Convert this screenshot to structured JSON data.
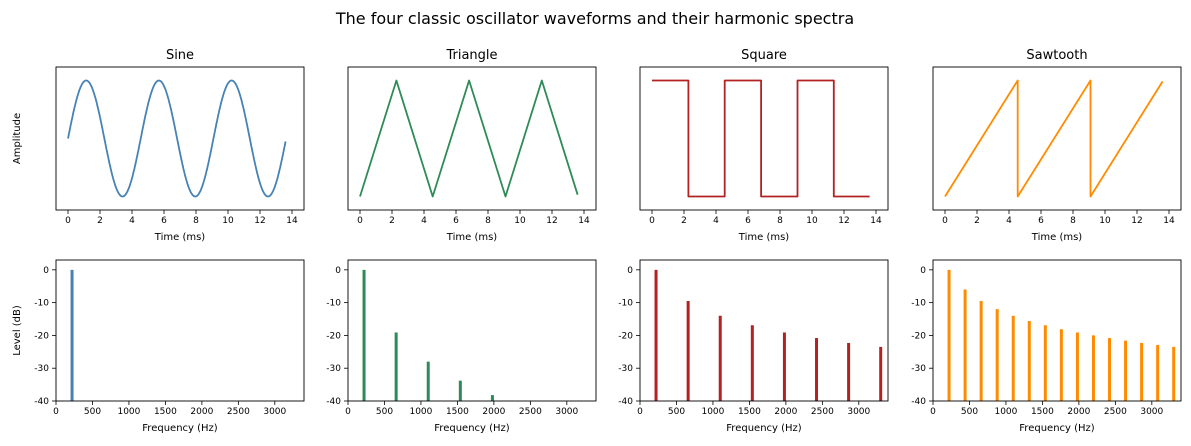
{
  "figure_title": "The four classic oscillator waveforms and their harmonic spectra",
  "colors": {
    "sine": "#4682b4",
    "triangle": "#2e8b57",
    "square": "#b22222",
    "sawtooth": "#ff8c00"
  },
  "chart_data": [
    {
      "type": "line",
      "title": "Sine",
      "xlabel": "Time (ms)",
      "ylabel": "Amplitude",
      "series": [
        {
          "waveform": "sine",
          "color": "#4682b4",
          "period_ms": 4.5454,
          "x_range": [
            0,
            13.6
          ]
        }
      ],
      "xlim": [
        0,
        14
      ],
      "xticks": [
        0,
        2,
        4,
        6,
        8,
        10,
        12,
        14
      ],
      "yticks": [],
      "grid": false
    },
    {
      "type": "line",
      "title": "Triangle",
      "xlabel": "Time (ms)",
      "ylabel": "",
      "series": [
        {
          "waveform": "triangle",
          "color": "#2e8b57",
          "period_ms": 4.5454,
          "x_range": [
            0,
            13.6
          ]
        }
      ],
      "xlim": [
        0,
        14
      ],
      "xticks": [
        0,
        2,
        4,
        6,
        8,
        10,
        12,
        14
      ],
      "yticks": [],
      "grid": false
    },
    {
      "type": "line",
      "title": "Square",
      "xlabel": "Time (ms)",
      "ylabel": "",
      "series": [
        {
          "waveform": "square",
          "color": "#b22222",
          "period_ms": 4.5454,
          "x_range": [
            0,
            13.6
          ]
        }
      ],
      "xlim": [
        0,
        14
      ],
      "xticks": [
        0,
        2,
        4,
        6,
        8,
        10,
        12,
        14
      ],
      "yticks": [],
      "grid": false
    },
    {
      "type": "line",
      "title": "Sawtooth",
      "xlabel": "Time (ms)",
      "ylabel": "",
      "series": [
        {
          "waveform": "sawtooth",
          "color": "#ff8c00",
          "period_ms": 4.5454,
          "x_range": [
            0,
            13.6
          ]
        }
      ],
      "xlim": [
        0,
        14
      ],
      "xticks": [
        0,
        2,
        4,
        6,
        8,
        10,
        12,
        14
      ],
      "yticks": [],
      "grid": false
    },
    {
      "type": "bar",
      "title": "",
      "xlabel": "Frequency (Hz)",
      "ylabel": "Level (dB)",
      "series": [
        {
          "color": "#4682b4",
          "x": [
            220
          ],
          "values": [
            0
          ]
        }
      ],
      "xlim": [
        0,
        3400
      ],
      "ylim": [
        -40,
        3
      ],
      "xticks": [
        0,
        500,
        1000,
        1500,
        2000,
        2500,
        3000
      ],
      "yticks": [
        0,
        -10,
        -20,
        -30,
        -40
      ],
      "grid": false
    },
    {
      "type": "bar",
      "title": "",
      "xlabel": "Frequency (Hz)",
      "ylabel": "",
      "series": [
        {
          "color": "#2e8b57",
          "x": [
            220,
            660,
            1100,
            1540,
            1980
          ],
          "values": [
            0,
            -19.1,
            -28.0,
            -33.8,
            -38.2
          ]
        }
      ],
      "xlim": [
        0,
        3400
      ],
      "ylim": [
        -40,
        3
      ],
      "xticks": [
        0,
        500,
        1000,
        1500,
        2000,
        2500,
        3000
      ],
      "yticks": [
        0,
        -10,
        -20,
        -30,
        -40
      ],
      "grid": false
    },
    {
      "type": "bar",
      "title": "",
      "xlabel": "Frequency (Hz)",
      "ylabel": "",
      "series": [
        {
          "color": "#b22222",
          "x": [
            220,
            660,
            1100,
            1540,
            1980,
            2420,
            2860,
            3300
          ],
          "values": [
            0,
            -9.5,
            -14.0,
            -16.9,
            -19.1,
            -20.8,
            -22.3,
            -23.5
          ]
        }
      ],
      "xlim": [
        0,
        3400
      ],
      "ylim": [
        -40,
        3
      ],
      "xticks": [
        0,
        500,
        1000,
        1500,
        2000,
        2500,
        3000
      ],
      "yticks": [
        0,
        -10,
        -20,
        -30,
        -40
      ],
      "grid": false
    },
    {
      "type": "bar",
      "title": "",
      "xlabel": "Frequency (Hz)",
      "ylabel": "",
      "series": [
        {
          "color": "#ff8c00",
          "x": [
            220,
            440,
            660,
            880,
            1100,
            1320,
            1540,
            1760,
            1980,
            2200,
            2420,
            2640,
            2860,
            3080,
            3300
          ],
          "values": [
            0,
            -6.0,
            -9.5,
            -12.0,
            -14.0,
            -15.6,
            -16.9,
            -18.1,
            -19.1,
            -20.0,
            -20.8,
            -21.6,
            -22.3,
            -22.9,
            -23.5
          ]
        }
      ],
      "xlim": [
        0,
        3400
      ],
      "ylim": [
        -40,
        3
      ],
      "xticks": [
        0,
        500,
        1000,
        1500,
        2000,
        2500,
        3000
      ],
      "yticks": [
        0,
        -10,
        -20,
        -30,
        -40
      ],
      "grid": false
    }
  ]
}
